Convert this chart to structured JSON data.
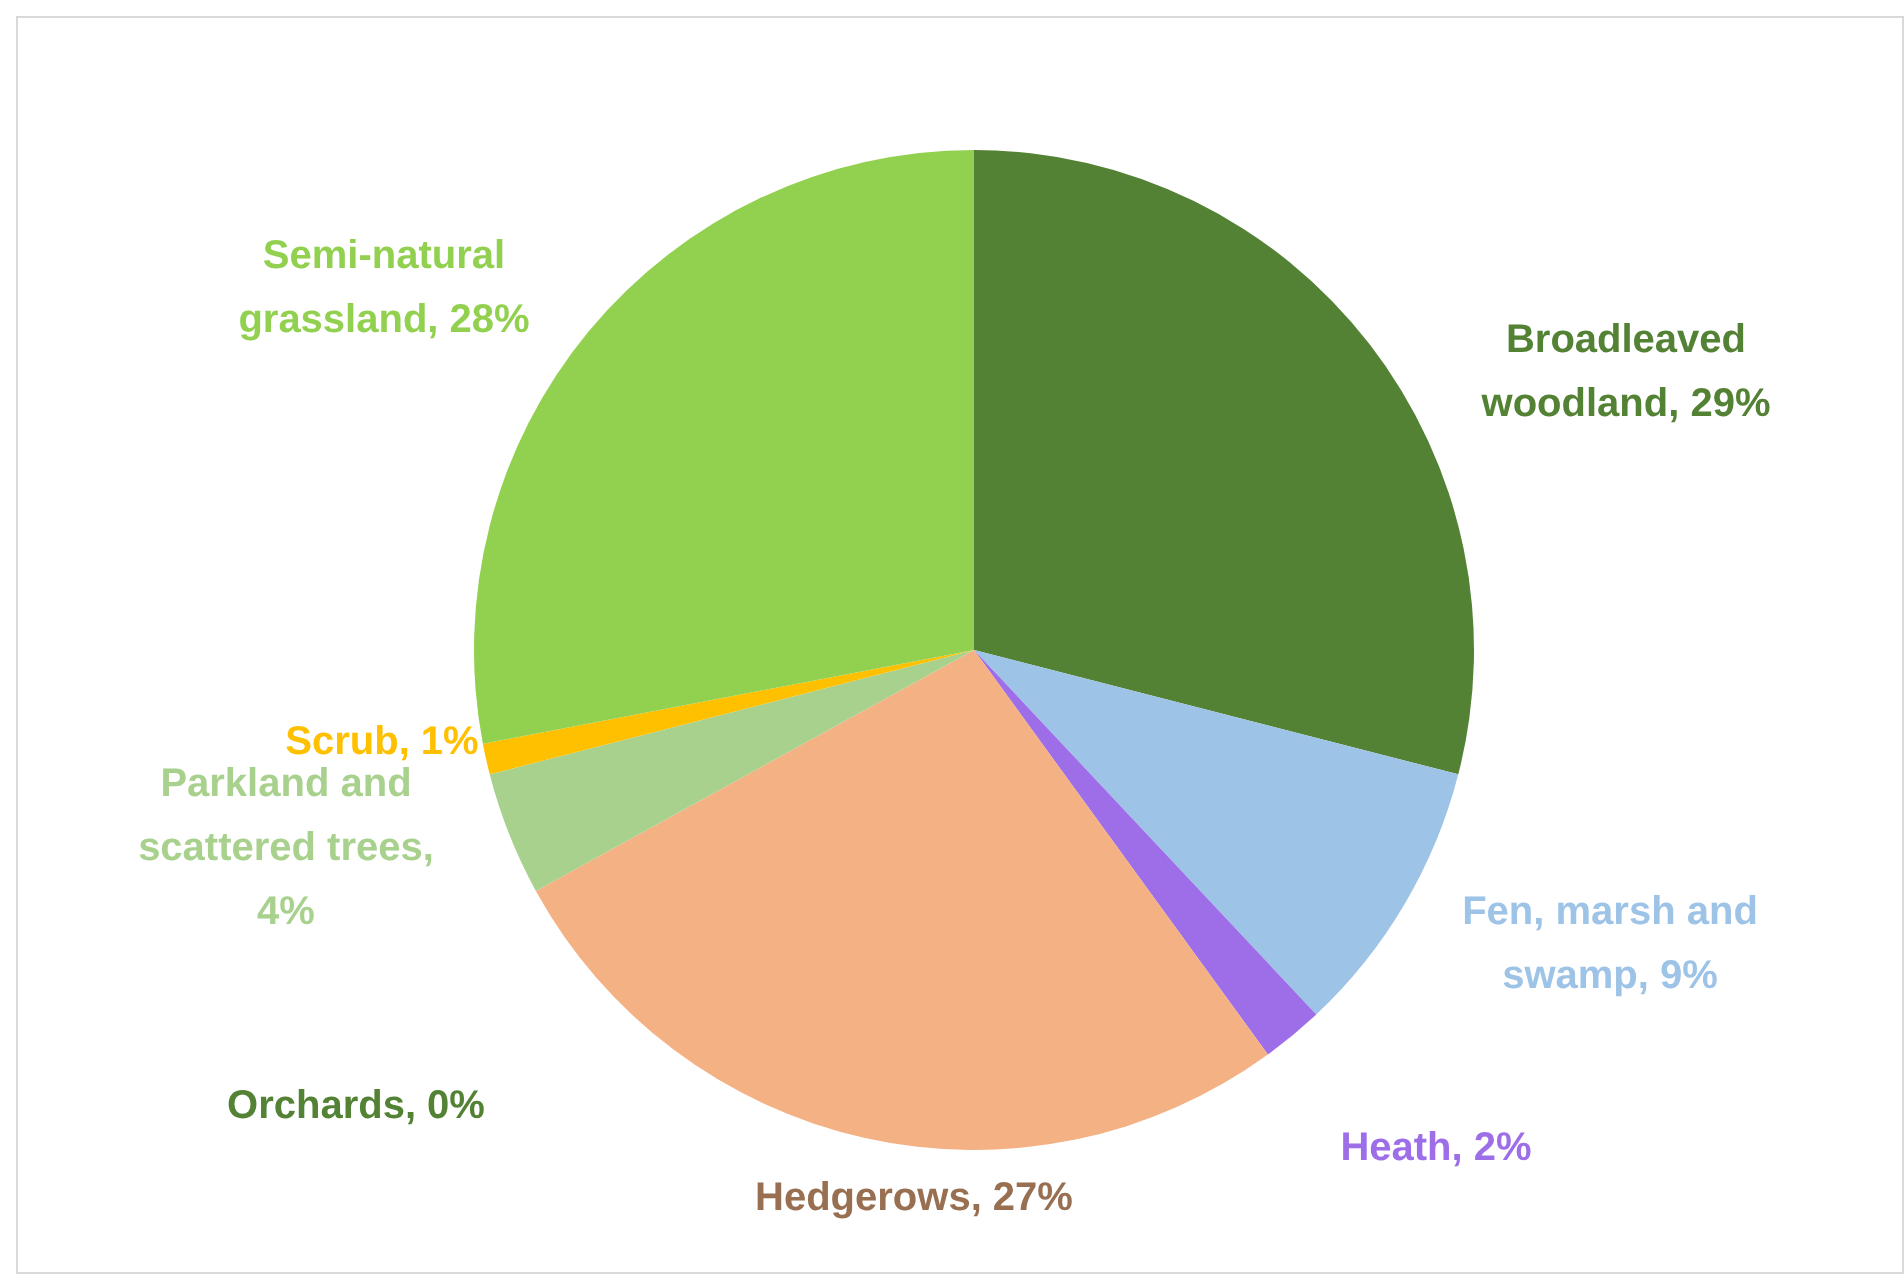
{
  "chart_data": {
    "type": "pie",
    "categories": [
      "Broadleaved woodland, 29%",
      "Fen, marsh and swamp, 9%",
      "Heath, 2%",
      "Hedgerows, 27%",
      "Orchards, 0%",
      "Parkland and scattered trees, 4%",
      "Scrub, 1%",
      "Semi-natural grassland, 28%"
    ],
    "values": [
      29,
      9,
      2,
      27,
      0,
      4,
      1,
      28
    ],
    "colors": [
      "#548235",
      "#9dc3e6",
      "#9e6ee8",
      "#f4b183",
      "#548235",
      "#a9d18e",
      "#ffc000",
      "#92d050"
    ]
  }
}
